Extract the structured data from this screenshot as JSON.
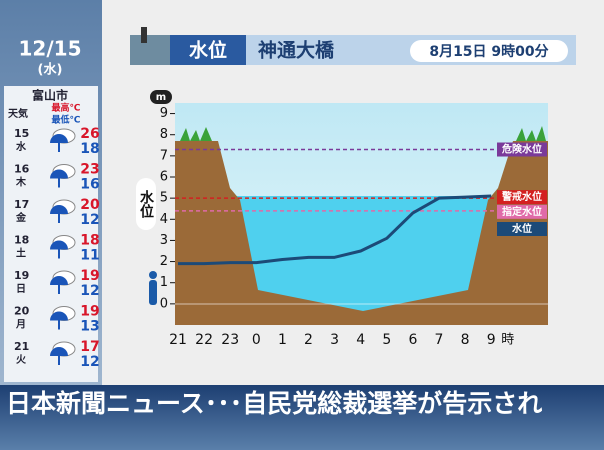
{
  "sidebar": {
    "date": "12/15",
    "weekday": "(水)",
    "city": "富山市",
    "weather_label": "天気",
    "max_label": "最高℃",
    "min_label": "最低℃",
    "days": [
      {
        "day": "15",
        "weekday": "水",
        "high": 26,
        "low": 18
      },
      {
        "day": "16",
        "weekday": "木",
        "high": 23,
        "low": 16
      },
      {
        "day": "17",
        "weekday": "金",
        "high": 20,
        "low": 12
      },
      {
        "day": "18",
        "weekday": "土",
        "high": 18,
        "low": 11
      },
      {
        "day": "19",
        "weekday": "日",
        "high": 19,
        "low": 12
      },
      {
        "day": "20",
        "weekday": "月",
        "high": 19,
        "low": 13
      },
      {
        "day": "21",
        "weekday": "火",
        "high": 17,
        "low": 12
      }
    ]
  },
  "header": {
    "title": "水位",
    "location": "神通大橋",
    "datetime": "8月15日 9時00分"
  },
  "ticker": "日本新聞ニュース･･･自民党総裁選挙が告示され",
  "chart_data": {
    "type": "line",
    "y_unit": "m",
    "y_label": "水位",
    "x_unit": "時",
    "categories": [
      "21",
      "22",
      "23",
      "0",
      "1",
      "2",
      "3",
      "4",
      "5",
      "6",
      "7",
      "8",
      "9"
    ],
    "series": [
      {
        "name": "水位",
        "color": "#1c4a78",
        "values": [
          1.9,
          1.9,
          1.95,
          1.95,
          2.1,
          2.2,
          2.2,
          2.5,
          3.1,
          4.3,
          5.0,
          5.05,
          5.1
        ]
      }
    ],
    "ylim": [
      -1,
      9.5
    ],
    "yticks": [
      0,
      1,
      2,
      3,
      4,
      5,
      6,
      7,
      8,
      9
    ],
    "grid": false,
    "thresholds": [
      {
        "label": "危険水位",
        "value": 7.3,
        "color": "#7a3a9a"
      },
      {
        "label": "警戒水位",
        "value": 5.0,
        "color": "#d42020"
      },
      {
        "label": "指定水位",
        "value": 4.4,
        "color": "#e06aa8"
      }
    ]
  }
}
